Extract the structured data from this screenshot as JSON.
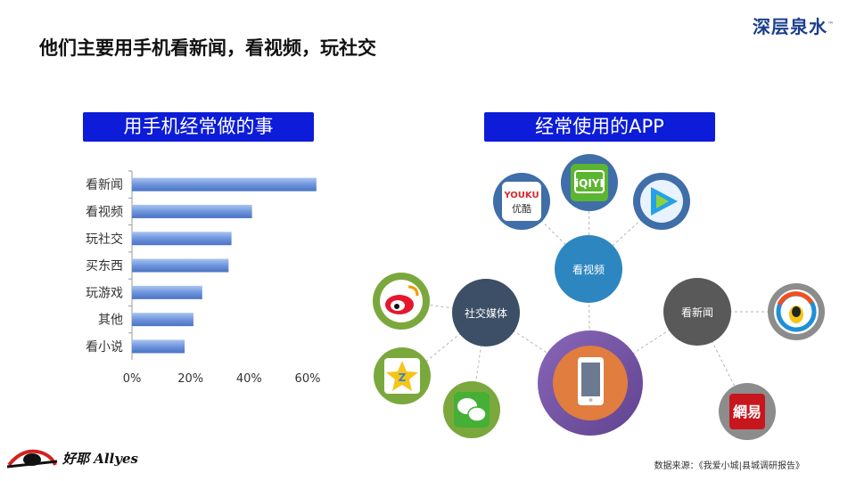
{
  "slide": {
    "title": "他们主要用手机看新闻，看视频，玩社交",
    "brand": "深层泉水",
    "brand_tm": "™",
    "left_header": "用手机经常做的事",
    "right_header": "经常使用的APP",
    "source": "数据来源：《我爱小城|县城调研报告》",
    "footer_logo_name": "好耶 Allyes"
  },
  "chart_data": {
    "type": "bar",
    "orientation": "horizontal",
    "categories": [
      "看新闻",
      "看视频",
      "玩社交",
      "买东西",
      "玩游戏",
      "其他",
      "看小说"
    ],
    "values": [
      63,
      41,
      34,
      33,
      24,
      21,
      18
    ],
    "xlim": [
      0,
      65
    ],
    "xticks": [
      "0%",
      "20%",
      "40%",
      "60%"
    ],
    "xtick_values": [
      0,
      20,
      40,
      60
    ],
    "bar_color": "#6f95dc"
  },
  "app_diagram": {
    "hubs": [
      {
        "label": "看视频",
        "color": "#2e86c1"
      },
      {
        "label": "社交媒体",
        "color": "#3d4f66"
      },
      {
        "label": "看新闻",
        "color": "#595959"
      }
    ],
    "center": {
      "label": "phone",
      "outer_color": "#7a5ca8",
      "inner_color": "#e07d3f"
    },
    "apps": [
      {
        "label": "YOUKU",
        "sub": "优酷",
        "hub": "看视频"
      },
      {
        "label": "iQIYI",
        "hub": "看视频"
      },
      {
        "label": "腾讯视频",
        "hub": "看视频"
      },
      {
        "label": "微博",
        "hub": "社交媒体"
      },
      {
        "label": "QQ空间",
        "hub": "社交媒体"
      },
      {
        "label": "微信",
        "hub": "社交媒体"
      },
      {
        "label": "腾讯新闻",
        "hub": "看新闻"
      },
      {
        "label": "網易",
        "hub": "看新闻"
      }
    ]
  }
}
